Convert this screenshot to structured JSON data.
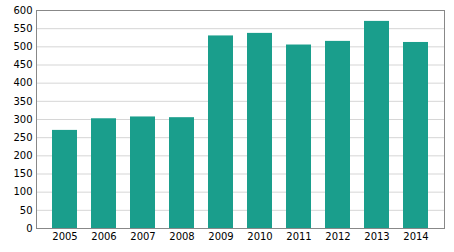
{
  "chart_data": {
    "type": "bar",
    "categories": [
      "2005",
      "2006",
      "2007",
      "2008",
      "2009",
      "2010",
      "2011",
      "2012",
      "2013",
      "2014"
    ],
    "values": [
      270,
      302,
      307,
      305,
      530,
      537,
      505,
      515,
      570,
      512
    ],
    "color": "#1a9e8c",
    "ylim": [
      0,
      600
    ],
    "yticks": [
      0,
      50,
      100,
      150,
      200,
      250,
      300,
      350,
      400,
      450,
      500,
      550,
      600
    ],
    "grid": true
  }
}
